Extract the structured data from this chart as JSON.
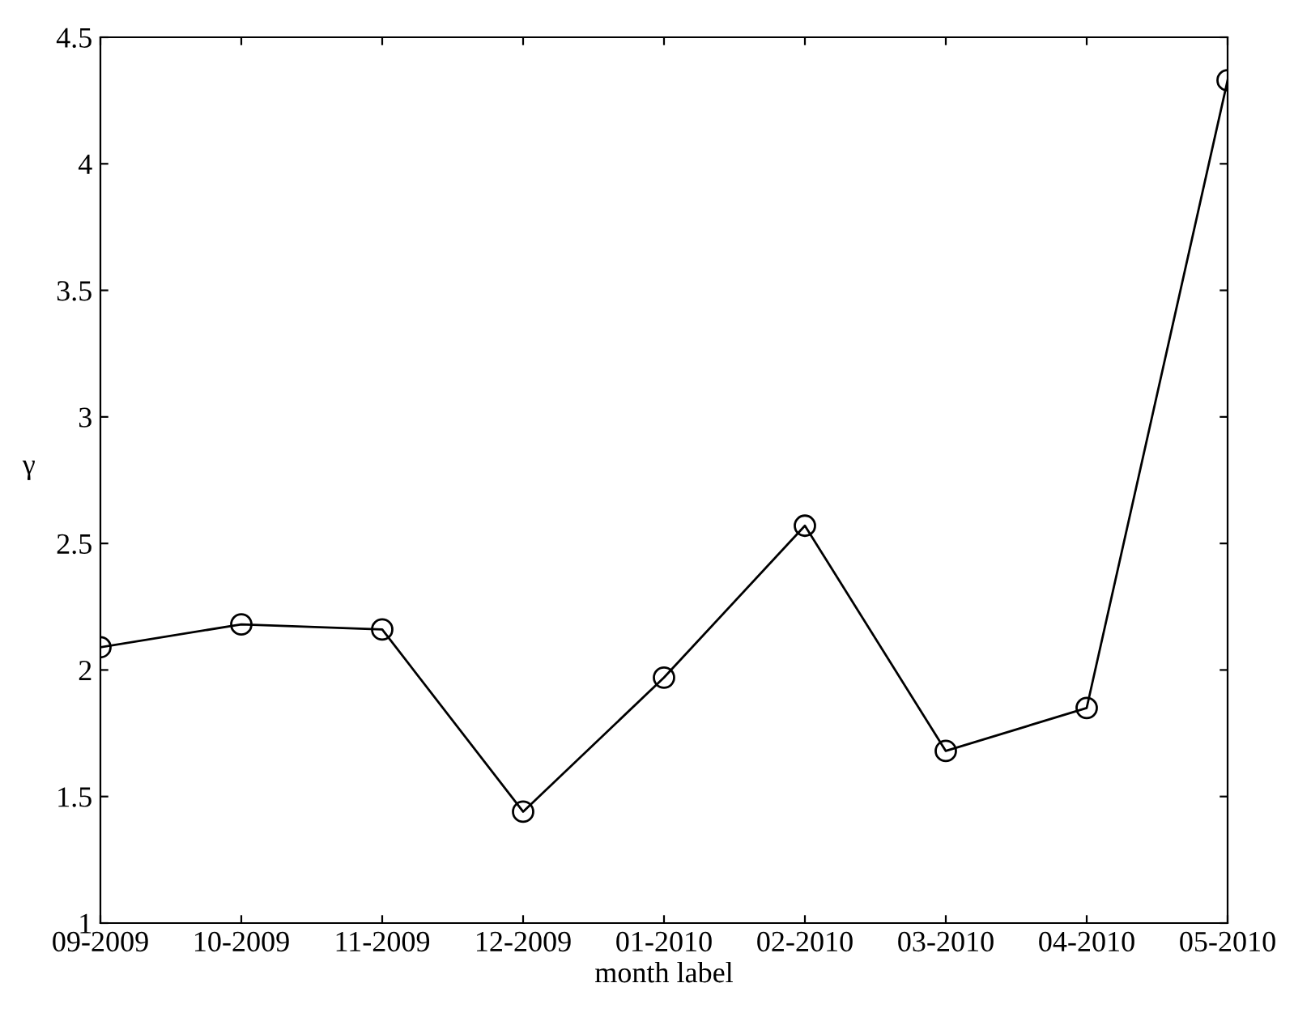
{
  "chart_data": {
    "type": "line",
    "xlabel": "month label",
    "ylabel": "γ",
    "categories": [
      "09-2009",
      "10-2009",
      "11-2009",
      "12-2009",
      "01-2010",
      "02-2010",
      "03-2010",
      "04-2010",
      "05-2010"
    ],
    "series": [
      {
        "color": "#000000",
        "values": [
          2.09,
          2.18,
          2.16,
          1.44,
          1.97,
          2.57,
          1.68,
          1.85,
          4.33
        ]
      }
    ],
    "ylim": [
      1,
      4.5
    ],
    "yticks": [
      1,
      1.5,
      2,
      2.5,
      3,
      3.5,
      4,
      4.5
    ],
    "marker": "circle",
    "line_style": "solid",
    "grid": false,
    "legend": false
  }
}
